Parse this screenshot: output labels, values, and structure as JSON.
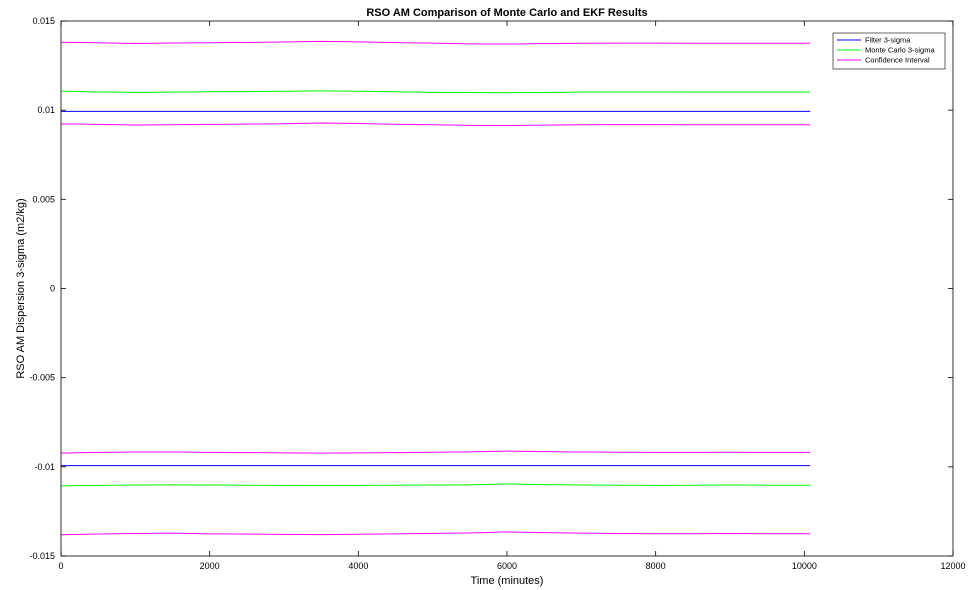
{
  "chart_data": {
    "type": "line",
    "title": "RSO AM Comparison of Monte Carlo and EKF Results",
    "xlabel": "Time (minutes)",
    "ylabel": "RSO AM Dispersion 3-sigma (m2/kg)",
    "xlim": [
      0,
      12000
    ],
    "ylim": [
      -0.015,
      0.015
    ],
    "xticks": [
      0,
      2000,
      4000,
      6000,
      8000,
      10000,
      12000
    ],
    "xtick_labels": [
      "0",
      "2000",
      "4000",
      "6000",
      "8000",
      "10000",
      "12000"
    ],
    "yticks": [
      -0.015,
      -0.01,
      -0.005,
      0,
      0.005,
      0.01,
      0.015
    ],
    "ytick_labels": [
      "-0.015",
      "-0.01",
      "-0.005",
      "0",
      "0.005",
      "0.01",
      "0.015"
    ],
    "grid": false,
    "legend_position": "top-right",
    "x": [
      0,
      500,
      1000,
      1500,
      2000,
      2500,
      3000,
      3500,
      4000,
      4500,
      5000,
      5500,
      6000,
      6500,
      7000,
      7500,
      8000,
      8500,
      9000,
      9500,
      10080
    ],
    "series": [
      {
        "name": "Filter 3-sigma",
        "legend": true,
        "color": "#0000ff",
        "values": [
          0.00993,
          0.00993,
          0.00993,
          0.00993,
          0.00993,
          0.00993,
          0.00993,
          0.00993,
          0.00993,
          0.00993,
          0.00993,
          0.00993,
          0.00993,
          0.00993,
          0.00993,
          0.00993,
          0.00993,
          0.00993,
          0.00993,
          0.00993,
          0.00993
        ]
      },
      {
        "legend": false,
        "color": "#0000ff",
        "values": [
          -0.00993,
          -0.00993,
          -0.00993,
          -0.00993,
          -0.00993,
          -0.00993,
          -0.00993,
          -0.00993,
          -0.00993,
          -0.00993,
          -0.00993,
          -0.00993,
          -0.00993,
          -0.00993,
          -0.00993,
          -0.00993,
          -0.00993,
          -0.00993,
          -0.00993,
          -0.00993,
          -0.00993
        ]
      },
      {
        "name": "Monte Carlo 3-sigma",
        "legend": true,
        "color": "#00ff00",
        "values": [
          0.01107,
          0.01102,
          0.011,
          0.01101,
          0.01103,
          0.01104,
          0.01106,
          0.01108,
          0.01106,
          0.01103,
          0.011,
          0.01099,
          0.01098,
          0.01099,
          0.01101,
          0.01102,
          0.01102,
          0.01101,
          0.01101,
          0.01101,
          0.01101
        ]
      },
      {
        "legend": false,
        "color": "#00ff00",
        "values": [
          -0.01107,
          -0.01104,
          -0.01102,
          -0.01101,
          -0.01102,
          -0.01103,
          -0.01104,
          -0.01105,
          -0.01104,
          -0.01103,
          -0.01102,
          -0.01101,
          -0.01096,
          -0.011,
          -0.01102,
          -0.01103,
          -0.01104,
          -0.01103,
          -0.01102,
          -0.01103,
          -0.01103
        ]
      },
      {
        "name": "Confidence Interval",
        "legend": true,
        "color": "#ff00ff",
        "values": [
          0.01381,
          0.01378,
          0.01374,
          0.01377,
          0.01378,
          0.0138,
          0.01382,
          0.01386,
          0.01383,
          0.01379,
          0.01376,
          0.01372,
          0.01371,
          0.01373,
          0.01375,
          0.01376,
          0.01376,
          0.01375,
          0.01375,
          0.01375,
          0.01375
        ]
      },
      {
        "legend": false,
        "color": "#ff00ff",
        "values": [
          0.00923,
          0.0092,
          0.00917,
          0.00918,
          0.0092,
          0.00922,
          0.00924,
          0.00928,
          0.00925,
          0.00921,
          0.00918,
          0.00915,
          0.00914,
          0.00916,
          0.00918,
          0.00919,
          0.00919,
          0.00918,
          0.00918,
          0.00918,
          0.00918
        ]
      },
      {
        "legend": false,
        "color": "#ff00ff",
        "values": [
          -0.00923,
          -0.00919,
          -0.00917,
          -0.00917,
          -0.00919,
          -0.0092,
          -0.00922,
          -0.00923,
          -0.00922,
          -0.0092,
          -0.00918,
          -0.00916,
          -0.00912,
          -0.00915,
          -0.00917,
          -0.00918,
          -0.00919,
          -0.00919,
          -0.00918,
          -0.00919,
          -0.00919
        ]
      },
      {
        "legend": false,
        "color": "#ff00ff",
        "values": [
          -0.01381,
          -0.01377,
          -0.01374,
          -0.01372,
          -0.01376,
          -0.01377,
          -0.01379,
          -0.0138,
          -0.01378,
          -0.01376,
          -0.01373,
          -0.01371,
          -0.01365,
          -0.01369,
          -0.01372,
          -0.01374,
          -0.01375,
          -0.01375,
          -0.01374,
          -0.01375,
          -0.01375
        ]
      }
    ]
  }
}
